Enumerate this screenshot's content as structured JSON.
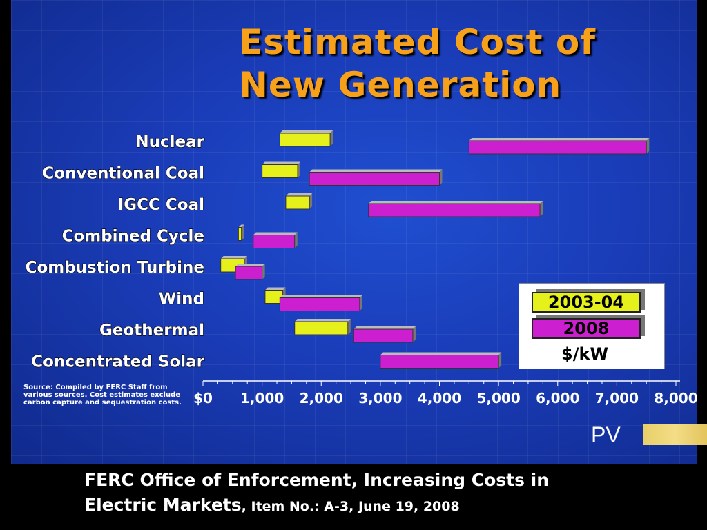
{
  "chart_data": {
    "type": "bar",
    "subtype": "floating-range",
    "title": "Estimated Cost of New Generation",
    "title_line2": "New Generation",
    "title_line1": "Estimated Cost of",
    "categories": [
      "Nuclear",
      "Conventional Coal",
      "IGCC Coal",
      "Combined Cycle",
      "Combustion Turbine",
      "Wind",
      "Geothermal",
      "Concentrated Solar"
    ],
    "series": [
      {
        "name": "2003-04",
        "color": "#e6f01a",
        "ranges": [
          [
            1300,
            2150
          ],
          [
            1000,
            1600
          ],
          [
            1400,
            1800
          ],
          [
            600,
            650
          ],
          [
            300,
            700
          ],
          [
            1050,
            1350
          ],
          [
            1550,
            2450
          ],
          null
        ]
      },
      {
        "name": "2008",
        "color": "#cc1fcf",
        "ranges": [
          [
            4500,
            7500
          ],
          [
            1800,
            4000
          ],
          [
            2800,
            5700
          ],
          [
            850,
            1550
          ],
          [
            550,
            1000
          ],
          [
            1300,
            2650
          ],
          [
            2550,
            3550
          ],
          [
            3000,
            5000
          ]
        ]
      }
    ],
    "x_ticks": [
      "$0",
      "1,000",
      "2,000",
      "3,000",
      "4,000",
      "5,000",
      "6,000",
      "7,000",
      "8,000"
    ],
    "xlim": [
      0,
      8000
    ],
    "unit": "$/kW",
    "legend_position": "bottom-right",
    "source": "Source: Compiled by FERC Staff from various sources. Cost estimates exclude carbon capture and sequestration costs."
  },
  "legend": {
    "item1": "2003-04",
    "item2": "2008",
    "unit": "$/kW"
  },
  "pv_label": "PV",
  "footer": {
    "line1": "FERC Office of Enforcement, Increasing Costs in",
    "line2_main": "Electric Markets",
    "line2_item": ", Item No.: A-3",
    "line2_date": ", June 19, 2008"
  },
  "colors": {
    "title": "#f7a11a",
    "bar_2003": "#e6f01a",
    "bar_2008": "#cc1fcf",
    "background": "#1a3cb8"
  }
}
